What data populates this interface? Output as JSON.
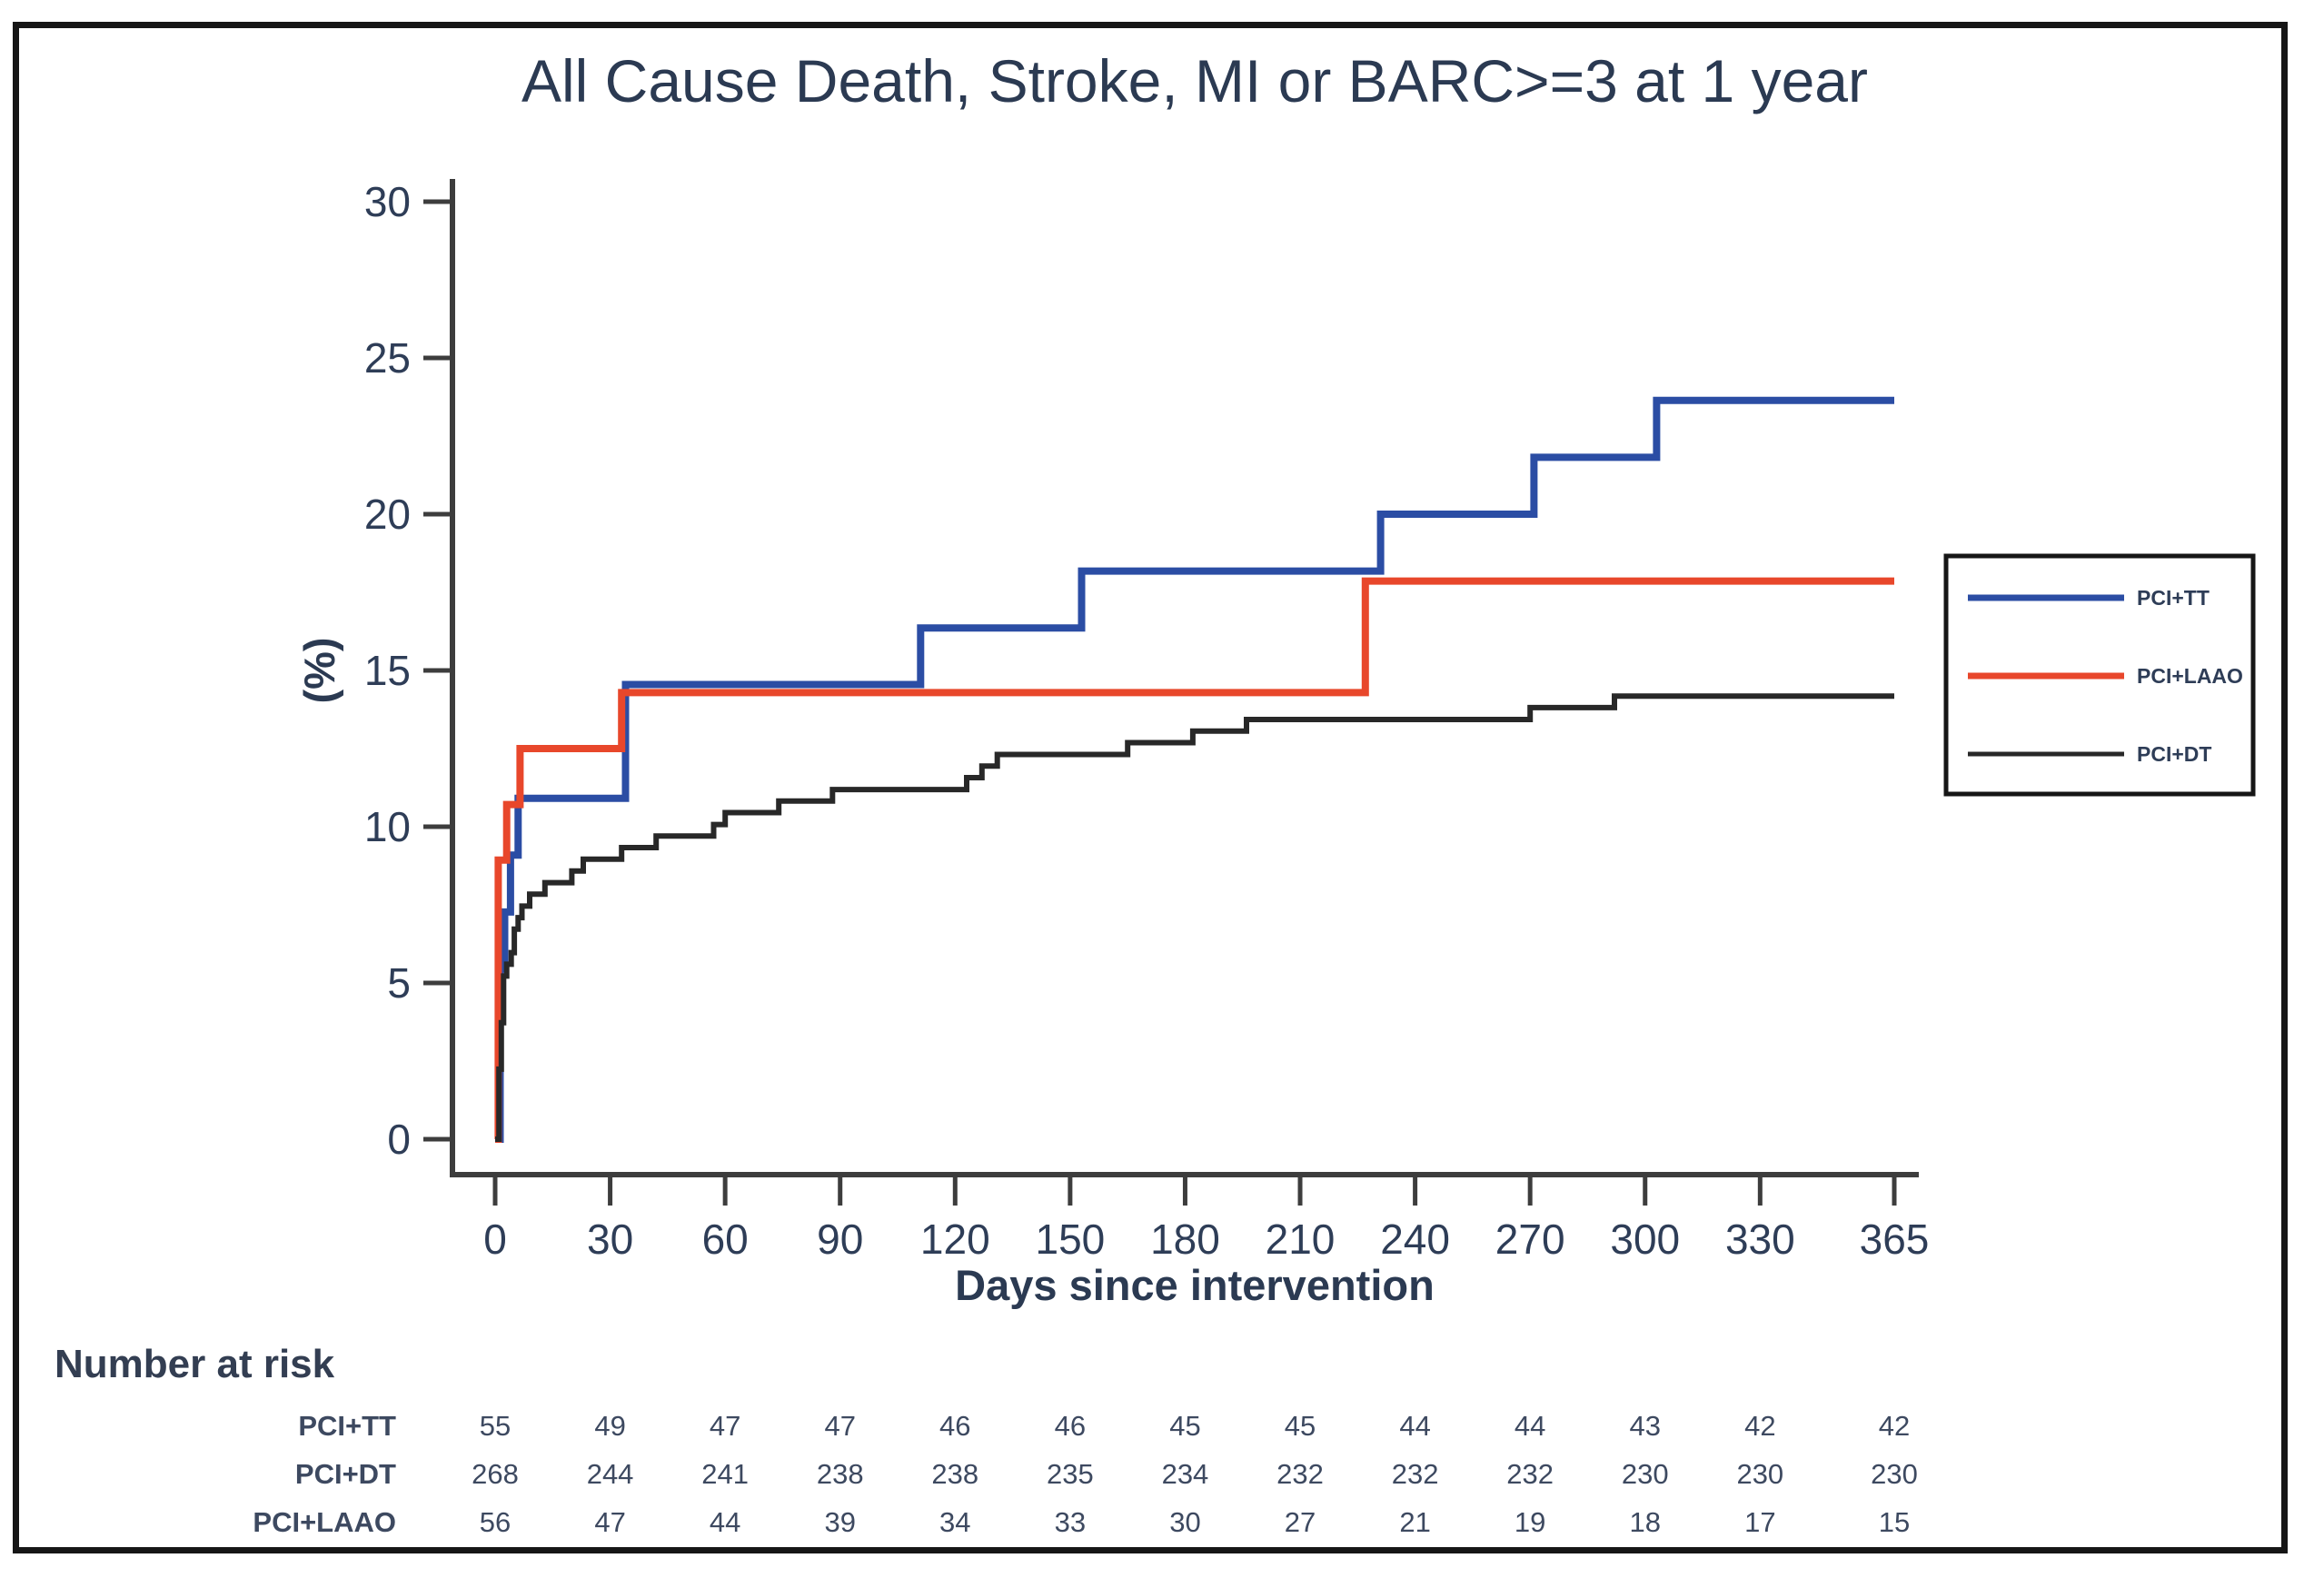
{
  "chart_data": {
    "type": "line",
    "subtype": "kaplan-meier-step",
    "title": "All Cause Death, Stroke, MI or BARC>=3 at 1 year",
    "xlabel": "Days since intervention",
    "ylabel": "(%)",
    "xlim": [
      0,
      365
    ],
    "ylim": [
      0,
      30
    ],
    "x_ticks": [
      0,
      30,
      60,
      90,
      120,
      150,
      180,
      210,
      240,
      270,
      300,
      330,
      365
    ],
    "y_ticks": [
      0,
      5,
      10,
      15,
      20,
      25,
      30
    ],
    "grid": false,
    "legend_position": "right",
    "series": [
      {
        "name": "PCI+TT",
        "color": "#2b4da4",
        "stroke_width": 8,
        "points": [
          [
            0,
            0
          ],
          [
            1.3,
            5.45
          ],
          [
            2.5,
            7.27
          ],
          [
            4,
            9.09
          ],
          [
            6,
            10.91
          ],
          [
            34,
            14.55
          ],
          [
            111,
            16.36
          ],
          [
            153,
            18.18
          ],
          [
            231,
            20.0
          ],
          [
            271,
            21.82
          ],
          [
            303,
            23.64
          ],
          [
            365,
            23.64
          ]
        ]
      },
      {
        "name": "PCI+LAAO",
        "color": "#e8472b",
        "stroke_width": 8,
        "points": [
          [
            0,
            0
          ],
          [
            0.8,
            8.93
          ],
          [
            3,
            10.71
          ],
          [
            6.5,
            12.5
          ],
          [
            33,
            14.29
          ],
          [
            227,
            17.86
          ],
          [
            365,
            17.86
          ]
        ]
      },
      {
        "name": "PCI+DT",
        "color": "#282828",
        "stroke_width": 6,
        "points": [
          [
            0,
            0
          ],
          [
            1,
            2.24
          ],
          [
            1.6,
            3.73
          ],
          [
            2.2,
            5.22
          ],
          [
            3,
            5.6
          ],
          [
            4.2,
            5.97
          ],
          [
            5,
            6.72
          ],
          [
            6,
            7.09
          ],
          [
            7,
            7.46
          ],
          [
            9,
            7.84
          ],
          [
            13,
            8.21
          ],
          [
            20,
            8.58
          ],
          [
            23,
            8.96
          ],
          [
            33,
            9.33
          ],
          [
            42,
            9.7
          ],
          [
            57,
            10.07
          ],
          [
            60,
            10.45
          ],
          [
            74,
            10.82
          ],
          [
            88,
            11.19
          ],
          [
            123,
            11.57
          ],
          [
            127,
            11.94
          ],
          [
            131,
            12.31
          ],
          [
            165,
            12.69
          ],
          [
            182,
            13.06
          ],
          [
            196,
            13.43
          ],
          [
            270,
            13.81
          ],
          [
            292,
            14.18
          ],
          [
            365,
            14.18
          ]
        ]
      }
    ],
    "legend": [
      {
        "label": "PCI+TT",
        "color": "#2b4da4"
      },
      {
        "label": "PCI+LAAO",
        "color": "#e8472b"
      },
      {
        "label": "PCI+DT",
        "color": "#282828"
      }
    ],
    "risk_table": {
      "header": "Number at risk",
      "time_points": [
        0,
        30,
        60,
        90,
        120,
        150,
        180,
        210,
        240,
        270,
        300,
        330,
        365
      ],
      "rows": [
        {
          "label": "PCI+TT",
          "values": [
            55,
            49,
            47,
            47,
            46,
            46,
            45,
            45,
            44,
            44,
            43,
            42,
            42
          ]
        },
        {
          "label": "PCI+DT",
          "values": [
            268,
            244,
            241,
            238,
            238,
            235,
            234,
            232,
            232,
            232,
            230,
            230,
            230
          ]
        },
        {
          "label": "PCI+LAAO",
          "values": [
            56,
            47,
            44,
            39,
            34,
            33,
            30,
            27,
            21,
            19,
            18,
            17,
            15
          ]
        }
      ]
    }
  }
}
